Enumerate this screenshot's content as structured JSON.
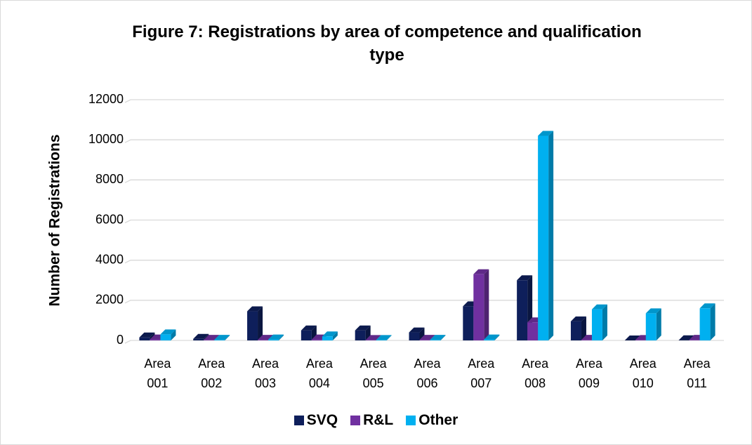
{
  "chart_data": {
    "type": "bar",
    "title": "Figure 7: Registrations by area of competence and qualification type",
    "y_label": "Number of Registrations",
    "categories": [
      "Area 001",
      "Area 002",
      "Area 003",
      "Area 004",
      "Area 005",
      "Area 006",
      "Area 007",
      "Area 008",
      "Area 009",
      "Area 010",
      "Area 011"
    ],
    "series": [
      {
        "name": "SVQ",
        "color": "#0e1f5b",
        "values": [
          150,
          80,
          1450,
          500,
          500,
          400,
          1700,
          3000,
          950,
          0,
          10
        ]
      },
      {
        "name": "R&L",
        "color": "#7030a0",
        "values": [
          50,
          30,
          30,
          50,
          20,
          30,
          3300,
          900,
          30,
          20,
          30
        ]
      },
      {
        "name": "Other",
        "color": "#00b0f0",
        "values": [
          300,
          30,
          50,
          200,
          20,
          30,
          50,
          10200,
          1550,
          1350,
          1600
        ]
      }
    ],
    "ylim": [
      0,
      12000
    ],
    "yticks": [
      0,
      2000,
      4000,
      6000,
      8000,
      10000,
      12000
    ],
    "grid": true,
    "legend": "bottom"
  }
}
